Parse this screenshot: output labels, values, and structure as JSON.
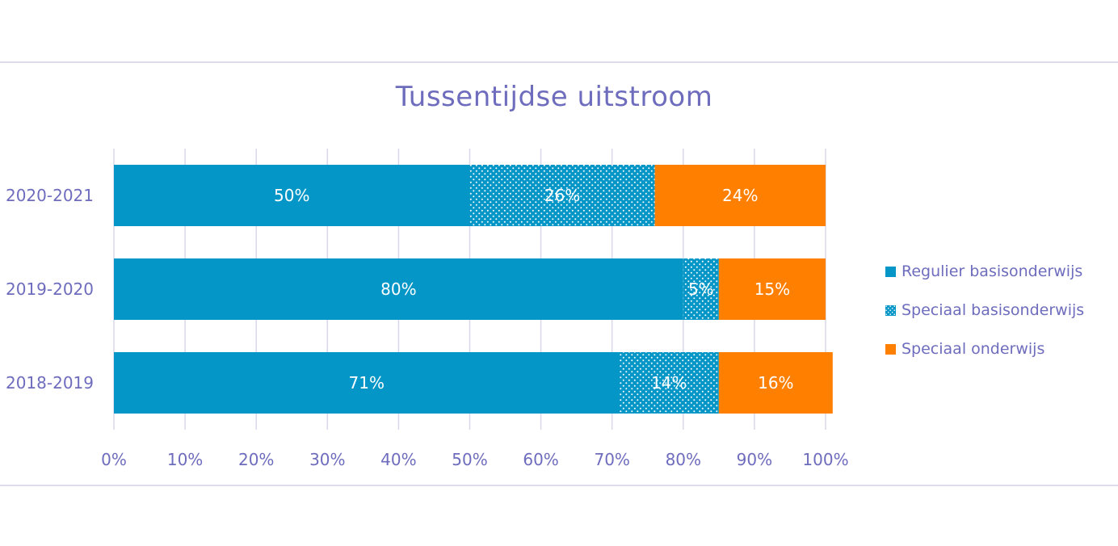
{
  "chart_data": {
    "type": "bar",
    "orientation": "horizontal",
    "stacked": "100%",
    "title": "Tussentijdse uitstroom",
    "categories": [
      "2020-2021",
      "2019-2020",
      "2018-2019"
    ],
    "series": [
      {
        "name": "Regulier basisonderwijs",
        "values": [
          50,
          80,
          71
        ],
        "labels": [
          "50%",
          "80%",
          "71%"
        ],
        "color": "#0496c7",
        "pattern": "solid"
      },
      {
        "name": "Speciaal basisonderwijs",
        "values": [
          26,
          5,
          14
        ],
        "labels": [
          "26%",
          "5%",
          "14%"
        ],
        "color": "#0496c7",
        "pattern": "dotted"
      },
      {
        "name": "Speciaal onderwijs",
        "values": [
          24,
          15,
          16
        ],
        "labels": [
          "24%",
          "15%",
          "16%"
        ],
        "color": "#ff8000",
        "pattern": "solid"
      }
    ],
    "x_ticks": [
      "0%",
      "10%",
      "20%",
      "30%",
      "40%",
      "50%",
      "60%",
      "70%",
      "80%",
      "90%",
      "100%"
    ],
    "xlim": [
      0,
      100
    ],
    "xlabel": "",
    "ylabel": "",
    "grid": "vertical",
    "legend_position": "right",
    "text_color": "#6e6cbd",
    "grid_color": "#d8d8ea"
  }
}
